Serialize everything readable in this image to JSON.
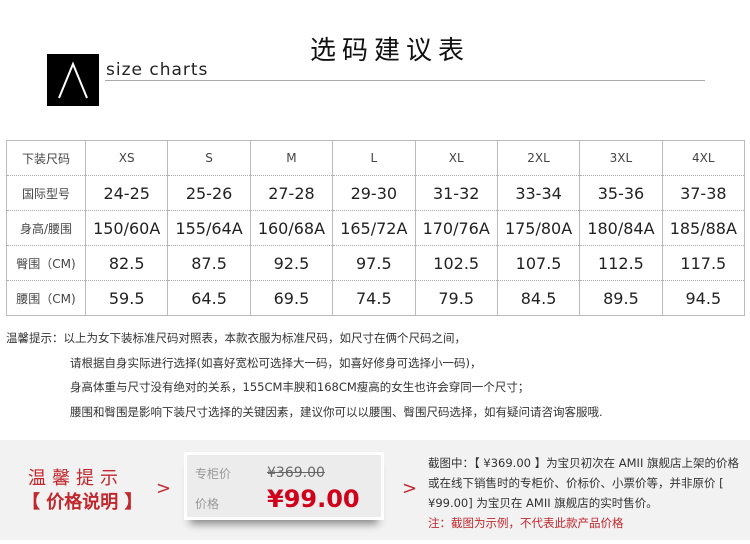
{
  "header": {
    "title": "选码建议表",
    "subtitle": "size charts",
    "logo_text": "Λ"
  },
  "table": {
    "rows": [
      [
        "下装尺码",
        "XS",
        "S",
        "M",
        "L",
        "XL",
        "2XL",
        "3XL",
        "4XL"
      ],
      [
        "国际型号",
        "24-25",
        "25-26",
        "27-28",
        "29-30",
        "31-32",
        "33-34",
        "35-36",
        "37-38"
      ],
      [
        "身高/腰围",
        "150/60A",
        "155/64A",
        "160/68A",
        "165/72A",
        "170/76A",
        "175/80A",
        "180/84A",
        "185/88A"
      ],
      [
        "臀围（CM)",
        "82.5",
        "87.5",
        "92.5",
        "97.5",
        "102.5",
        "107.5",
        "112.5",
        "117.5"
      ],
      [
        "腰围（CM)",
        "59.5",
        "64.5",
        "69.5",
        "74.5",
        "79.5",
        "84.5",
        "89.5",
        "94.5"
      ]
    ]
  },
  "notes": [
    "温馨提示：以上为女下装标准尺码对照表，本款衣服为标准尺码，如尺寸在俩个尺码之间，",
    "请根据自身实际进行选择(如喜好宽松可选择大一码，如喜好修身可选择小一码)，",
    "身高体重与尺寸没有绝对的关系，155CM丰腴和168CM瘦高的女生也许会穿同一个尺寸；",
    "腰围和臀围是影响下装尺寸选择的关键因素，建议你可以以腰围、臀围尺码选择，如有疑问请咨询客服哦."
  ],
  "price": {
    "tip_title": "温馨提示",
    "tip_sub": "【 价格说明 】",
    "arrow": ">",
    "counter_label": "专柜价",
    "counter_price": "¥369.00",
    "price_label": "价格",
    "price": "¥99.00",
    "desc": [
      "截图中：【 ¥369.00 】为宝贝初次在 AMII 旗舰店上架的价格或在线下销售时的专柜价、价标价、小票价等，并非原价 [ ¥99.00] 为宝贝在 AMII 旗舰店的实时售价。"
    ],
    "note": "注：截图为示例，不代表此款产品价格"
  },
  "colors": {
    "accent": "#c0282e",
    "price": "#d0021b"
  }
}
